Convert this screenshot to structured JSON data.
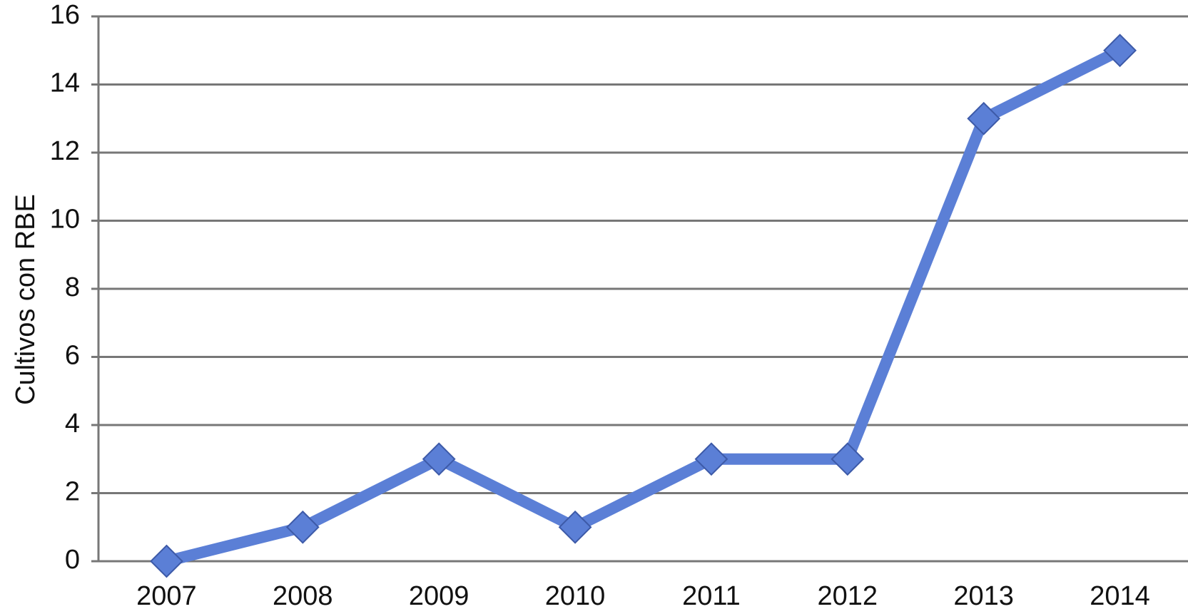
{
  "chart_data": {
    "type": "line",
    "y_label": "Cultivos con RBE",
    "categories": [
      "2007",
      "2008",
      "2009",
      "2010",
      "2011",
      "2012",
      "2013",
      "2014"
    ],
    "values": [
      0,
      1,
      3,
      1,
      3,
      3,
      13,
      15
    ],
    "color": "#5b7fd6",
    "ylim": [
      0,
      16
    ],
    "yticks": [
      0,
      2,
      4,
      6,
      8,
      10,
      12,
      14,
      16
    ],
    "grid": true
  }
}
